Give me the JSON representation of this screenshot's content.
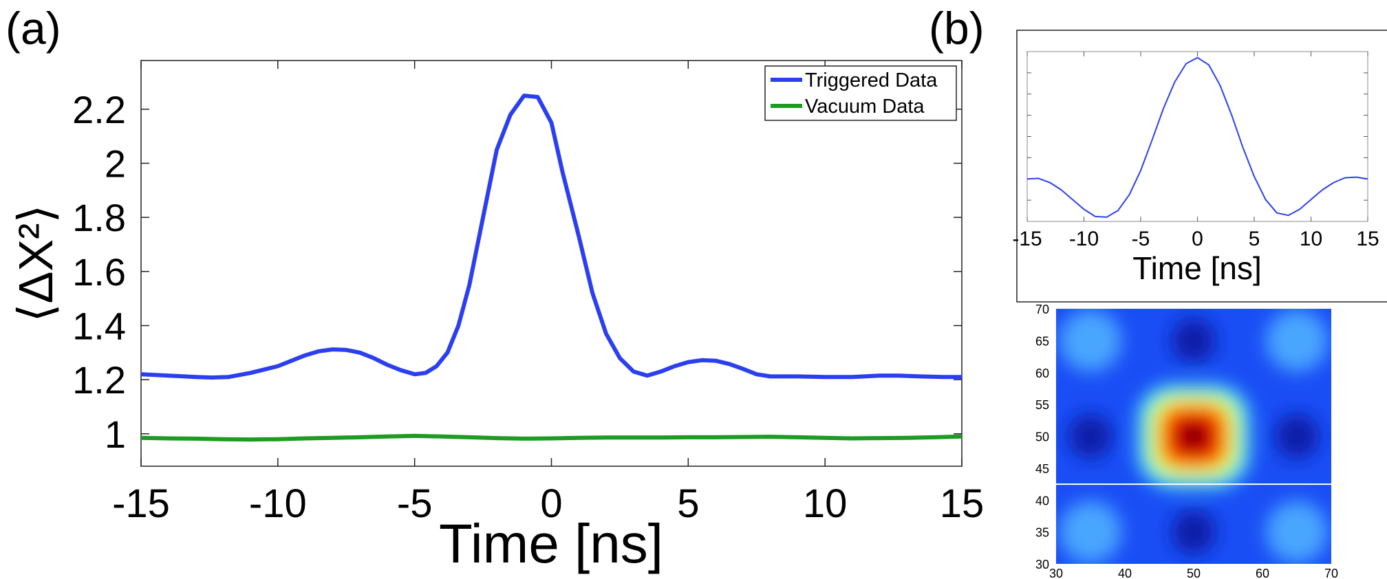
{
  "panels": {
    "a": {
      "label": "(a)"
    },
    "b": {
      "label": "(b)"
    }
  },
  "chart_data": [
    {
      "type": "line",
      "panel": "a",
      "xlabel": "Time [ns]",
      "ylabel": "⟨ΔX²⟩",
      "xlim": [
        -15,
        15
      ],
      "ylim": [
        0.88,
        2.38
      ],
      "xticks": [
        -15,
        -10,
        -5,
        0,
        5,
        10,
        15
      ],
      "yticks": [
        1,
        1.2,
        1.4,
        1.6,
        1.8,
        2,
        2.2
      ],
      "ytick_labels": [
        "1",
        "1.2",
        "1.4",
        "1.6",
        "1.8",
        "2",
        "2.2"
      ],
      "grid": false,
      "legend_position": "top-right",
      "series": [
        {
          "name": "Triggered Data",
          "color": "#2b3ff0",
          "x": [
            -15,
            -14,
            -13,
            -12.4,
            -11.8,
            -11,
            -10,
            -9,
            -8.5,
            -8,
            -7.5,
            -7,
            -6.5,
            -6,
            -5.5,
            -5,
            -4.6,
            -4.2,
            -3.8,
            -3.4,
            -3,
            -2.5,
            -2,
            -1.5,
            -1,
            -0.5,
            0,
            0.4,
            1,
            1.5,
            2,
            2.5,
            3,
            3.5,
            4,
            4.5,
            5,
            5.5,
            6,
            6.5,
            7,
            7.5,
            8,
            9,
            10,
            11,
            12,
            12.7,
            13.5,
            14.3,
            15
          ],
          "y": [
            1.22,
            1.215,
            1.21,
            1.208,
            1.21,
            1.225,
            1.25,
            1.29,
            1.305,
            1.312,
            1.31,
            1.3,
            1.28,
            1.255,
            1.235,
            1.22,
            1.225,
            1.25,
            1.3,
            1.4,
            1.55,
            1.8,
            2.05,
            2.18,
            2.25,
            2.245,
            2.15,
            1.97,
            1.73,
            1.52,
            1.37,
            1.28,
            1.23,
            1.215,
            1.23,
            1.25,
            1.265,
            1.272,
            1.27,
            1.258,
            1.24,
            1.22,
            1.212,
            1.212,
            1.21,
            1.21,
            1.215,
            1.215,
            1.212,
            1.21,
            1.21
          ]
        },
        {
          "name": "Vacuum Data",
          "color": "#1f9a22",
          "x": [
            -15,
            -14,
            -13,
            -12,
            -11,
            -10,
            -9,
            -8,
            -7,
            -6,
            -5,
            -4,
            -3,
            -2,
            -1,
            0,
            1,
            2,
            3,
            4,
            5,
            6,
            7,
            8,
            9,
            10,
            11,
            12,
            13,
            14,
            15
          ],
          "y": [
            0.985,
            0.983,
            0.982,
            0.98,
            0.979,
            0.98,
            0.983,
            0.985,
            0.987,
            0.99,
            0.992,
            0.99,
            0.987,
            0.984,
            0.982,
            0.983,
            0.985,
            0.986,
            0.986,
            0.986,
            0.987,
            0.987,
            0.988,
            0.989,
            0.987,
            0.985,
            0.983,
            0.984,
            0.985,
            0.987,
            0.99
          ]
        }
      ]
    },
    {
      "type": "line",
      "panel": "b-inset",
      "xlabel": "Time [ns]",
      "ylabel": "",
      "xlim": [
        -15,
        15
      ],
      "ylim": [
        -0.35,
        1.05
      ],
      "xticks": [
        -15,
        -10,
        -5,
        0,
        5,
        10,
        15
      ],
      "grid": false,
      "series": [
        {
          "color": "#2b3ff0",
          "x": [
            -15,
            -14,
            -13,
            -12,
            -11,
            -10,
            -9,
            -8,
            -7,
            -6,
            -5,
            -4,
            -3,
            -2,
            -1,
            0,
            1,
            2,
            3,
            4,
            5,
            6,
            7,
            8,
            9,
            10,
            11,
            12,
            13,
            14,
            15
          ],
          "y": [
            0.0,
            0.005,
            -0.03,
            -0.09,
            -0.17,
            -0.25,
            -0.31,
            -0.315,
            -0.26,
            -0.13,
            0.07,
            0.32,
            0.58,
            0.8,
            0.95,
            1.0,
            0.94,
            0.77,
            0.53,
            0.26,
            0.02,
            -0.17,
            -0.28,
            -0.3,
            -0.25,
            -0.17,
            -0.09,
            -0.03,
            0.01,
            0.015,
            0.0
          ]
        }
      ]
    },
    {
      "type": "heatmap",
      "panel": "b-map",
      "xlim": [
        30,
        70
      ],
      "ylim": [
        30,
        70
      ],
      "xticks": [
        30,
        40,
        50,
        60,
        70
      ],
      "yticks": [
        30,
        35,
        40,
        45,
        50,
        55,
        60,
        65,
        70
      ],
      "colormap": "jet",
      "grid": false,
      "features": {
        "peak_center": [
          50,
          50
        ],
        "plateau_halfwidth": 7.5,
        "dark_minima": [
          [
            35,
            50
          ],
          [
            65,
            50
          ],
          [
            50,
            35
          ],
          [
            50,
            65
          ]
        ],
        "bright_corners": [
          [
            35,
            35
          ],
          [
            65,
            35
          ],
          [
            35,
            65
          ],
          [
            65,
            65
          ]
        ],
        "white_line_y": 42.5
      }
    }
  ]
}
